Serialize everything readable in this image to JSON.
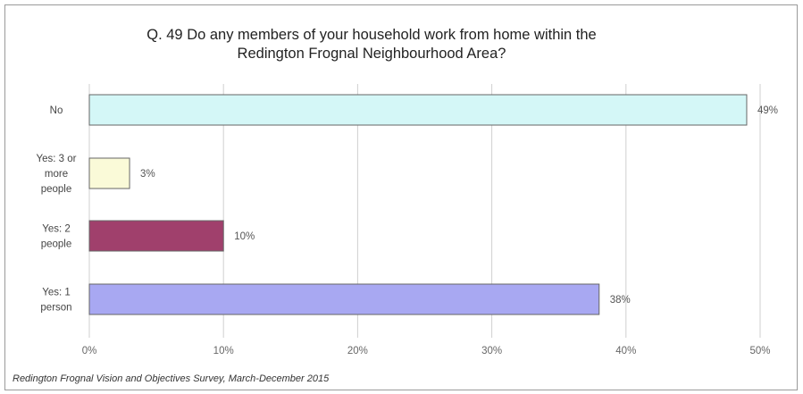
{
  "chart_data": {
    "type": "bar",
    "orientation": "horizontal",
    "title": "Q. 49  Do any members of your household work from home within the\nRedington Frognal Neighbourhood Area?",
    "categories": [
      [
        "No"
      ],
      [
        "Yes: 3 or",
        "more",
        "people"
      ],
      [
        "Yes: 2",
        "people"
      ],
      [
        "Yes: 1",
        "person"
      ]
    ],
    "values": [
      49,
      3,
      10,
      38
    ],
    "value_labels": [
      "49%",
      "3%",
      "10%",
      "38%"
    ],
    "colors": [
      "#d4f7f7",
      "#fafad8",
      "#a0406c",
      "#a8a8f2"
    ],
    "xlim": [
      0,
      50
    ],
    "xticks": [
      0,
      10,
      20,
      30,
      40,
      50
    ],
    "xtick_labels": [
      "0%",
      "10%",
      "20%",
      "30%",
      "40%",
      "50%"
    ],
    "grid": true,
    "source": "Redington Frognal Vision and Objectives Survey, March-December 2015"
  }
}
